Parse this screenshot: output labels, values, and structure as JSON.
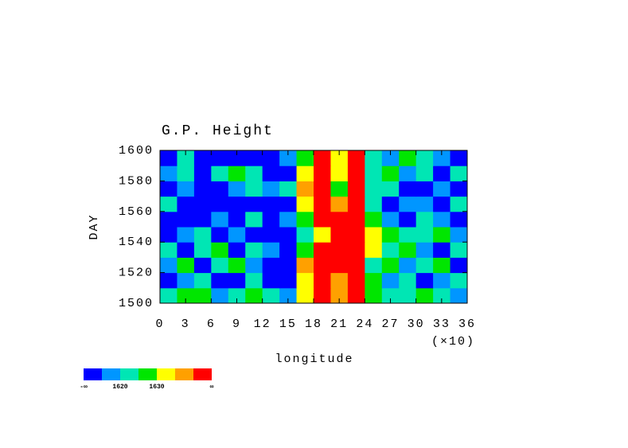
{
  "chart_data": {
    "type": "heatmap",
    "title": "G.P. Height",
    "xlabel": "longitude",
    "ylabel": "DAY",
    "x_multiplier": "(×10)",
    "xlim": [
      0,
      36
    ],
    "xticks": [
      0,
      3,
      6,
      9,
      12,
      15,
      18,
      21,
      24,
      27,
      30,
      33,
      36
    ],
    "ylim": [
      1500,
      1600
    ],
    "yticks": [
      1500,
      1520,
      1540,
      1560,
      1580,
      1600
    ],
    "xbins": [
      0,
      2,
      4,
      6,
      8,
      10,
      12,
      14,
      16,
      18,
      20,
      22,
      24,
      26,
      28,
      30,
      32,
      34,
      36
    ],
    "ybins": [
      1500,
      1510,
      1520,
      1530,
      1540,
      1550,
      1560,
      1570,
      1580,
      1590,
      1600
    ],
    "values": [
      [
        1622,
        1625,
        1628,
        1618,
        1624,
        1627,
        1620,
        1615,
        1630,
        1641,
        1638,
        1643,
        1628,
        1624,
        1620,
        1626,
        1622,
        1618
      ],
      [
        1612,
        1618,
        1622,
        1610,
        1614,
        1620,
        1612,
        1608,
        1632,
        1644,
        1636,
        1645,
        1626,
        1618,
        1622,
        1612,
        1616,
        1620
      ],
      [
        1618,
        1626,
        1614,
        1622,
        1628,
        1616,
        1610,
        1612,
        1636,
        1643,
        1640,
        1646,
        1624,
        1628,
        1616,
        1622,
        1626,
        1614
      ],
      [
        1624,
        1612,
        1620,
        1626,
        1612,
        1622,
        1618,
        1609,
        1628,
        1640,
        1645,
        1642,
        1630,
        1620,
        1626,
        1618,
        1612,
        1624
      ],
      [
        1610,
        1616,
        1624,
        1612,
        1618,
        1614,
        1610,
        1612,
        1622,
        1634,
        1646,
        1648,
        1632,
        1626,
        1620,
        1624,
        1628,
        1616
      ],
      [
        1614,
        1608,
        1612,
        1618,
        1610,
        1620,
        1614,
        1616,
        1626,
        1642,
        1644,
        1641,
        1628,
        1618,
        1614,
        1620,
        1616,
        1612
      ],
      [
        1620,
        1612,
        1610,
        1608,
        1614,
        1612,
        1609,
        1614,
        1633,
        1645,
        1638,
        1643,
        1624,
        1612,
        1618,
        1616,
        1610,
        1622
      ],
      [
        1612,
        1618,
        1614,
        1610,
        1616,
        1622,
        1618,
        1620,
        1636,
        1641,
        1628,
        1642,
        1620,
        1622,
        1614,
        1610,
        1618,
        1612
      ],
      [
        1618,
        1624,
        1612,
        1622,
        1628,
        1620,
        1612,
        1614,
        1632,
        1643,
        1630,
        1644,
        1622,
        1626,
        1618,
        1624,
        1614,
        1620
      ],
      [
        1614,
        1620,
        1610,
        1608,
        1612,
        1610,
        1612,
        1618,
        1627,
        1640,
        1634,
        1643,
        1620,
        1618,
        1626,
        1620,
        1616,
        1612
      ]
    ],
    "levels": [
      1615,
      1620,
      1625,
      1630,
      1635,
      1640
    ],
    "colors": [
      "#0000ff",
      "#0096ff",
      "#00e6b4",
      "#00e600",
      "#ffff00",
      "#ffa000",
      "#ff0000"
    ],
    "colorbar_ticks": [
      1620,
      1630
    ],
    "colorbar_ends": [
      "-∞",
      "∞"
    ]
  }
}
